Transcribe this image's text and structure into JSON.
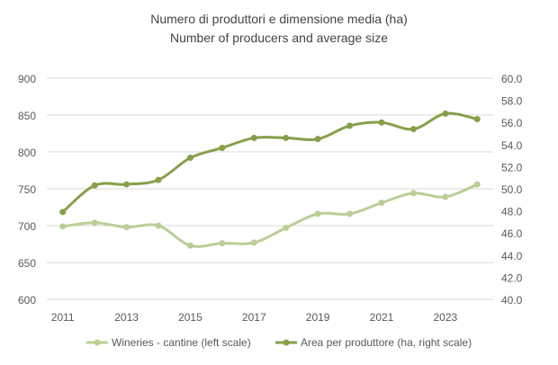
{
  "chart_data": {
    "type": "line",
    "title": "Numero di produttori e dimensione media (ha)",
    "subtitle": "Number of producers and average size",
    "x": [
      2011,
      2012,
      2013,
      2014,
      2015,
      2016,
      2017,
      2018,
      2019,
      2020,
      2021,
      2022,
      2023,
      2024
    ],
    "x_tick_labels": [
      "2011",
      "2013",
      "2015",
      "2017",
      "2019",
      "2021",
      "2023"
    ],
    "y_left": {
      "range": [
        600,
        900
      ],
      "ticks": [
        "600",
        "650",
        "700",
        "750",
        "800",
        "850",
        "900"
      ]
    },
    "y_right": {
      "range": [
        40,
        60
      ],
      "ticks": [
        "40.0",
        "42.0",
        "44.0",
        "46.0",
        "48.0",
        "50.0",
        "52.0",
        "54.0",
        "56.0",
        "58.0",
        "60.0"
      ]
    },
    "grid": true,
    "legend_position": "bottom",
    "series": [
      {
        "name": "Wineries - cantine (left scale)",
        "axis": "left",
        "color": "#b9cf95",
        "values": [
          699,
          704,
          698,
          700,
          673,
          676,
          677,
          697,
          716,
          716,
          731,
          744,
          739,
          756
        ]
      },
      {
        "name": "Area per produttore (ha, right scale)",
        "axis": "right",
        "color": "#86a04a",
        "values": [
          47.9,
          50.3,
          50.4,
          50.8,
          52.8,
          53.7,
          54.6,
          54.6,
          54.5,
          55.7,
          56.0,
          55.4,
          56.8,
          56.3
        ]
      }
    ]
  }
}
